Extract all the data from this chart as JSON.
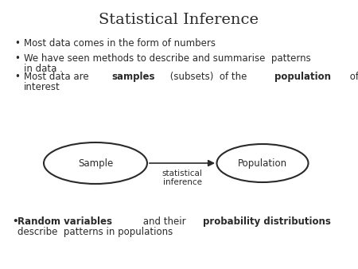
{
  "title": "Statistical Inference",
  "title_fontsize": 14,
  "title_font": "DejaVu Serif",
  "bg_color": "#ffffff",
  "text_color": "#2a2a2a",
  "ellipse_color": "#2a2a2a",
  "body_fontsize": 8.5,
  "small_fontsize": 7.5,
  "bullet1": "Most data comes in the form of numbers",
  "bullet2_line1": "We have seen methods to describe and summarise  patterns",
  "bullet2_line2": "in data .",
  "bullet3_pre": "Most data are ",
  "bullet3_bold1": "samples",
  "bullet3_mid": " (subsets)  of the ",
  "bullet3_bold2": "population",
  "bullet3_post": " of",
  "bullet3_line2": "interest",
  "sample_label": "Sample",
  "population_label": "Population",
  "arrow_label1": "statistical",
  "arrow_label2": "inference",
  "bottom_bullet": "•",
  "bottom_bold1": "Random variables",
  "bottom_norm1": " and their ",
  "bottom_bold2": "probability distributions",
  "bottom_line2": "describe  patterns in populations"
}
